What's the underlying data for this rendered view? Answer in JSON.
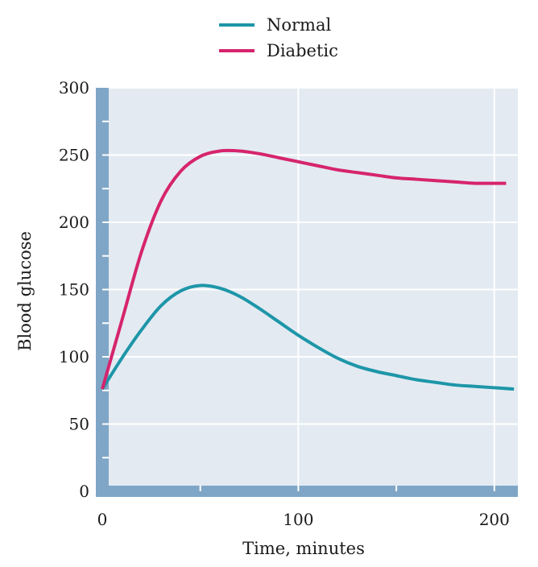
{
  "chart_data": {
    "type": "line",
    "xlabel": "Time, minutes",
    "ylabel": "Blood glucose",
    "xlim": [
      0,
      212
    ],
    "ylim": [
      0,
      300
    ],
    "x_ticks": [
      0,
      100,
      200
    ],
    "y_ticks": [
      0,
      50,
      100,
      150,
      200,
      250,
      300
    ],
    "grid": true,
    "legend": "top-center",
    "colors": {
      "plot_background": "#e3eaf2",
      "axis_bar": "#7fa6c6",
      "grid": "#ffffff"
    },
    "series": [
      {
        "name": "Normal",
        "color": "#1d96a8",
        "x": [
          0,
          10,
          20,
          30,
          40,
          50,
          60,
          70,
          80,
          90,
          100,
          110,
          120,
          130,
          140,
          150,
          160,
          170,
          180,
          190,
          200,
          210
        ],
        "y": [
          76,
          99,
          120,
          138,
          149,
          153,
          151,
          145,
          136,
          126,
          116,
          107,
          99,
          93,
          89,
          86,
          83,
          81,
          79,
          78,
          77,
          76
        ]
      },
      {
        "name": "Diabetic",
        "color": "#d6246d",
        "x": [
          0,
          10,
          20,
          30,
          40,
          50,
          60,
          70,
          80,
          90,
          100,
          110,
          120,
          130,
          140,
          150,
          160,
          170,
          180,
          190,
          200,
          206
        ],
        "y": [
          76,
          127,
          178,
          216,
          238,
          249,
          253,
          253,
          251,
          248,
          245,
          242,
          239,
          237,
          235,
          233,
          232,
          231,
          230,
          229,
          229,
          229
        ]
      }
    ]
  }
}
